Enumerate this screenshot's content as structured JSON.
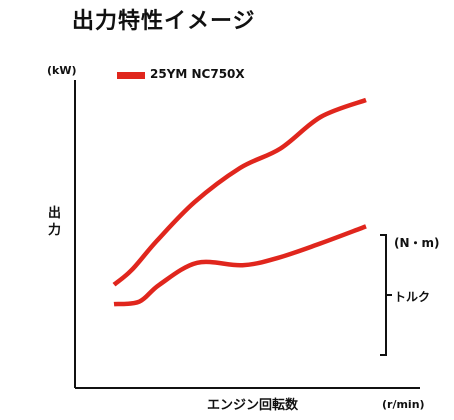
{
  "chart_data": {
    "type": "line",
    "title": "出力特性イメージ",
    "ylabel": "出力",
    "y_unit": "(kW)",
    "xlabel": "エンジン回転数",
    "x_unit": "(r/min)",
    "secondary_ylabel": "トルク",
    "secondary_y_unit": "(N・m)",
    "legend_position": "top-left",
    "grid": false,
    "xlim": [
      0,
      100
    ],
    "ylim": [
      0,
      100
    ],
    "series": [
      {
        "name": "25YM NC750X",
        "metric": "出力",
        "color": "#e0261d",
        "x": [
          0,
          7,
          17,
          32,
          50,
          66,
          82,
          100
        ],
        "y": [
          24,
          30,
          42,
          58,
          72,
          80,
          93,
          100
        ]
      },
      {
        "metric": "トルク",
        "color": "#e0261d",
        "x": [
          0,
          10,
          18,
          33,
          51,
          65,
          82,
          100
        ],
        "y": [
          16,
          17,
          24,
          33,
          32,
          35,
          41,
          48
        ]
      }
    ]
  }
}
